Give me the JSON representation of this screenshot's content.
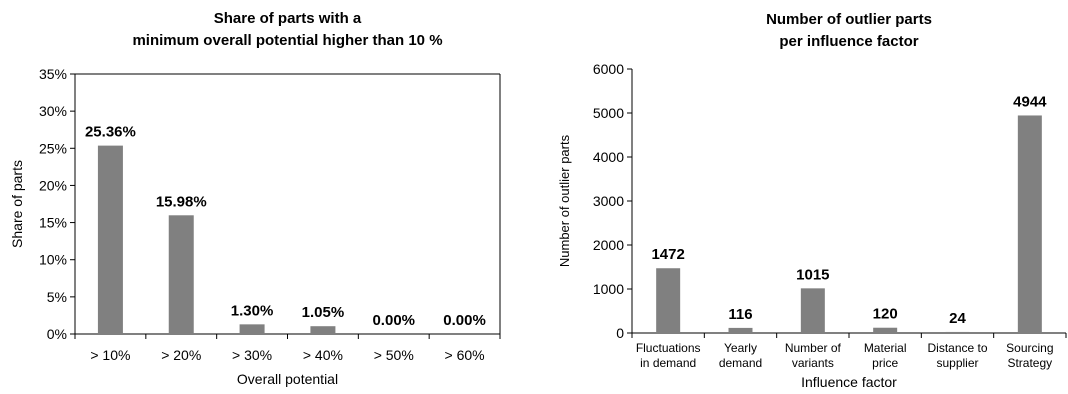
{
  "chart_data": [
    {
      "type": "bar",
      "title_lines": [
        "Share of parts with a",
        "minimum overall potential higher than 10 %"
      ],
      "xlabel": "Overall potential",
      "ylabel": "Share of parts",
      "categories": [
        "> 10%",
        "> 20%",
        "> 30%",
        "> 40%",
        "> 50%",
        "> 60%"
      ],
      "values": [
        25.36,
        15.98,
        1.3,
        1.05,
        0.0,
        0.0
      ],
      "data_labels": [
        "25.36%",
        "15.98%",
        "1.30%",
        "1.05%",
        "0.00%",
        "0.00%"
      ],
      "ylim": [
        0,
        35
      ],
      "yticks": [
        0,
        5,
        10,
        15,
        20,
        25,
        30,
        35
      ],
      "ytick_labels": [
        "0%",
        "5%",
        "10%",
        "15%",
        "20%",
        "25%",
        "30%",
        "35%"
      ],
      "bar_color": "#808080",
      "grid": false
    },
    {
      "type": "bar",
      "title_lines": [
        "Number of outlier parts",
        "per influence factor"
      ],
      "xlabel": "Influence factor",
      "ylabel": "Number of outlier parts",
      "categories": [
        [
          "Fluctuations",
          "in demand"
        ],
        [
          "Yearly",
          "demand"
        ],
        [
          "Number of",
          "variants"
        ],
        [
          "Material",
          "price"
        ],
        [
          "Distance to",
          "supplier"
        ],
        [
          "Sourcing",
          "Strategy"
        ]
      ],
      "values": [
        1472,
        116,
        1015,
        120,
        24,
        4944
      ],
      "data_labels": [
        "1472",
        "116",
        "1015",
        "120",
        "24",
        "4944"
      ],
      "ylim": [
        0,
        6000
      ],
      "yticks": [
        0,
        1000,
        2000,
        3000,
        4000,
        5000,
        6000
      ],
      "ytick_labels": [
        "0",
        "1000",
        "2000",
        "3000",
        "4000",
        "5000",
        "6000"
      ],
      "bar_color": "#808080",
      "grid": false
    }
  ]
}
